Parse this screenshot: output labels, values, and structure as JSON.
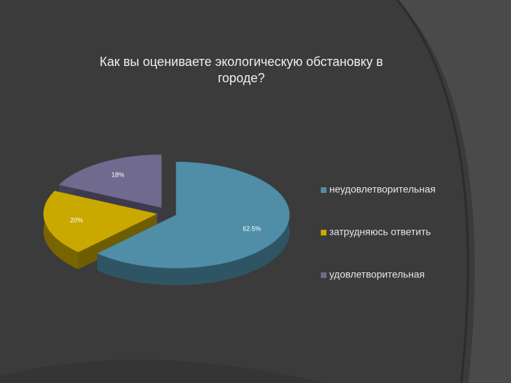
{
  "chart_data": {
    "type": "pie",
    "title": [
      "Как вы оцениваете экологическую обстановку в",
      "городе?"
    ],
    "categories": [
      "неудовлетворительная",
      "затрудняюсь ответить",
      "удовлетворительная"
    ],
    "values": [
      62.5,
      20,
      18
    ],
    "value_labels": [
      "62.5%",
      "20%",
      "18%"
    ],
    "colors": [
      "#4f8ea6",
      "#c9a900",
      "#6f6a8e"
    ],
    "legend": "right"
  }
}
